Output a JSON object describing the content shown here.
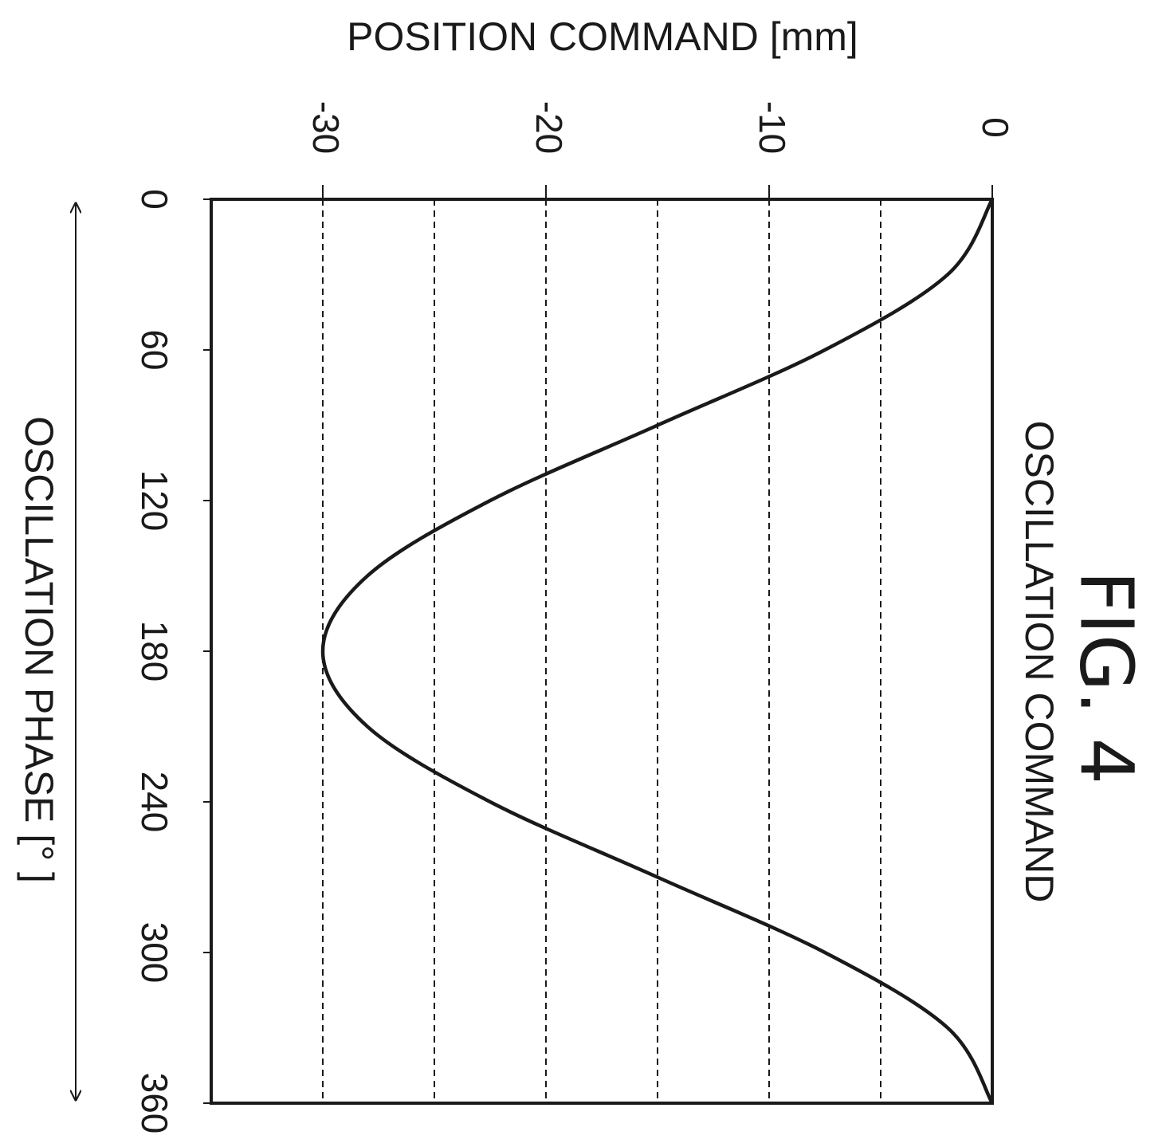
{
  "figure": {
    "label": "FIG. 4"
  },
  "chart_data": {
    "type": "line",
    "title": "OSCILLATION COMMAND",
    "xlabel": "OSCILLATION PHASE [° ]",
    "ylabel": "POSITION COMMAND [mm]",
    "xlim": [
      0,
      360
    ],
    "ylim": [
      -35,
      0
    ],
    "x_ticks": [
      0,
      60,
      120,
      180,
      240,
      300,
      360
    ],
    "x_tick_labels": [
      "0",
      "60",
      "120",
      "180",
      "240",
      "300",
      "360"
    ],
    "y_ticks": [
      0,
      -10,
      -20,
      -30
    ],
    "y_tick_labels": [
      "0",
      "-10",
      "-20",
      "-30"
    ],
    "y_gridlines": [
      -5,
      -10,
      -15,
      -20,
      -25,
      -30
    ],
    "grid": true,
    "grid_style": "dashed",
    "orientation": "rotated 90° clockwise",
    "series": [
      {
        "x": [
          0,
          30,
          60,
          90,
          120,
          150,
          180,
          210,
          240,
          270,
          300,
          330,
          360
        ],
        "y": [
          0,
          -2,
          -7.5,
          -15,
          -22.5,
          -28,
          -30,
          -28,
          -22.5,
          -15,
          -7.5,
          -2,
          0
        ]
      }
    ]
  }
}
